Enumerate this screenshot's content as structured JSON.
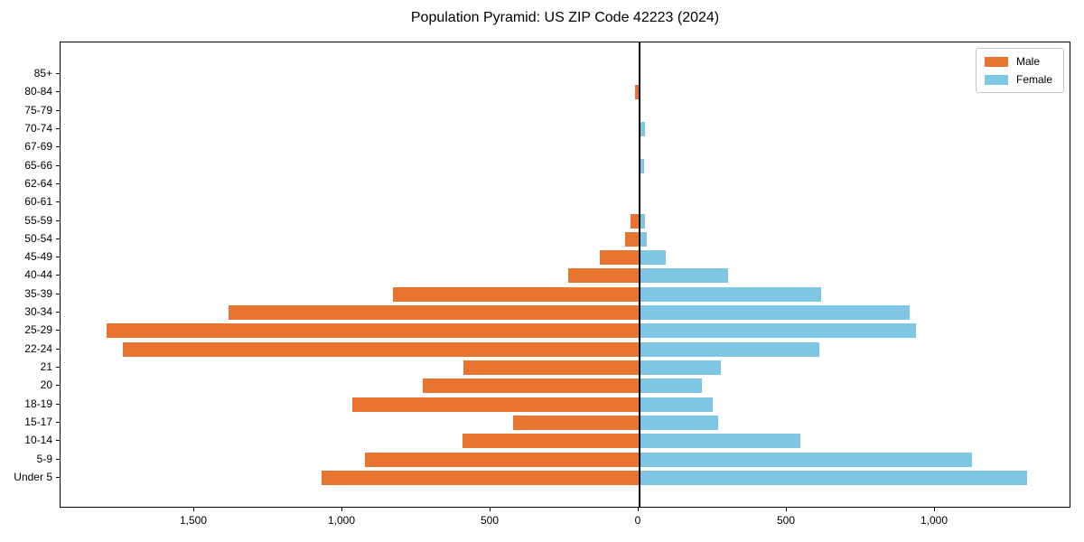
{
  "chart_data": {
    "type": "bar",
    "subtype": "population-pyramid",
    "title": "Population Pyramid: US ZIP Code 42223 (2024)",
    "orientation": "horizontal",
    "grid": false,
    "legend_position": "upper right",
    "categories_top_to_bottom": [
      "85+",
      "80-84",
      "75-79",
      "70-74",
      "67-69",
      "65-66",
      "62-64",
      "60-61",
      "55-59",
      "50-54",
      "45-49",
      "40-44",
      "35-39",
      "30-34",
      "25-29",
      "22-24",
      "21",
      "20",
      "18-19",
      "15-17",
      "10-14",
      "5-9",
      "Under 5"
    ],
    "series": [
      {
        "name": "Male",
        "side": "left",
        "color": "#e8752f",
        "values": [
          0,
          12,
          0,
          0,
          0,
          0,
          0,
          0,
          26,
          47,
          132,
          237,
          830,
          1385,
          1795,
          1740,
          590,
          730,
          965,
          425,
          595,
          925,
          1070
        ]
      },
      {
        "name": "Female",
        "side": "right",
        "color": "#7fc6e4",
        "values": [
          0,
          0,
          0,
          17,
          0,
          13,
          0,
          0,
          16,
          24,
          88,
          297,
          610,
          910,
          930,
          605,
          273,
          210,
          245,
          265,
          540,
          1120,
          1305
        ]
      }
    ],
    "x_ticks": [
      {
        "value": -1500,
        "label": "1,500"
      },
      {
        "value": -1000,
        "label": "1,000"
      },
      {
        "value": -500,
        "label": "500"
      },
      {
        "value": 0,
        "label": "0"
      },
      {
        "value": 500,
        "label": "500"
      },
      {
        "value": 1000,
        "label": "1,000"
      }
    ],
    "xlim": [
      -1950,
      1460
    ],
    "xlabel": "",
    "ylabel": ""
  },
  "legend": {
    "male_label": "Male",
    "female_label": "Female"
  }
}
